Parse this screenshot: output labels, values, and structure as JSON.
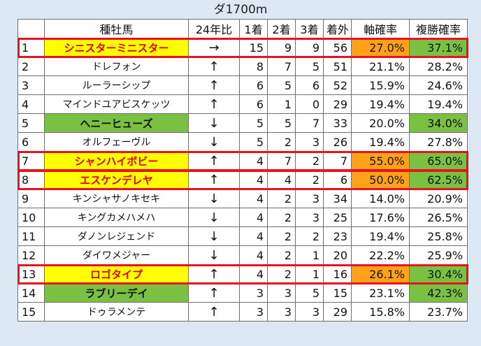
{
  "title": "ダ1700m",
  "headers": [
    "",
    "種牡馬",
    "24年比",
    "1着",
    "2着",
    "3着",
    "着外",
    "軸確率",
    "複勝確率"
  ],
  "colors": {
    "highlight_yellow": "#ffff00",
    "highlight_green": "#7ac143",
    "highlight_orange": "#ffa21a",
    "red_text": "#e00000",
    "red_border": "#e8131f",
    "page_bg": "#dce9f5"
  },
  "rows": [
    {
      "no": "1",
      "name": "シニスターミニスター",
      "cmp": "→",
      "first": "15",
      "second": "9",
      "third": "9",
      "out": "56",
      "axis": "27.0%",
      "place": "37.1%",
      "name_hl": "yellow",
      "axis_hl": "orange",
      "place_hl": "green",
      "boxed": true
    },
    {
      "no": "2",
      "name": "ドレフォン",
      "cmp": "↑",
      "first": "8",
      "second": "7",
      "third": "5",
      "out": "51",
      "axis": "21.1%",
      "place": "28.2%",
      "name_hl": "",
      "axis_hl": "",
      "place_hl": "",
      "boxed": false
    },
    {
      "no": "3",
      "name": "ルーラーシップ",
      "cmp": "↑",
      "first": "6",
      "second": "5",
      "third": "6",
      "out": "52",
      "axis": "15.9%",
      "place": "24.6%",
      "name_hl": "",
      "axis_hl": "",
      "place_hl": "",
      "boxed": false
    },
    {
      "no": "4",
      "name": "マインドユアビスケッツ",
      "cmp": "↑",
      "first": "6",
      "second": "1",
      "third": "0",
      "out": "29",
      "axis": "19.4%",
      "place": "19.4%",
      "name_hl": "",
      "axis_hl": "",
      "place_hl": "",
      "boxed": false
    },
    {
      "no": "5",
      "name": "ヘニーヒューズ",
      "cmp": "↓",
      "first": "5",
      "second": "5",
      "third": "7",
      "out": "33",
      "axis": "20.0%",
      "place": "34.0%",
      "name_hl": "green",
      "axis_hl": "",
      "place_hl": "green",
      "boxed": false
    },
    {
      "no": "6",
      "name": "オルフェーヴル",
      "cmp": "↓",
      "first": "5",
      "second": "2",
      "third": "3",
      "out": "26",
      "axis": "19.4%",
      "place": "27.8%",
      "name_hl": "",
      "axis_hl": "",
      "place_hl": "",
      "boxed": false
    },
    {
      "no": "7",
      "name": "シャンハイボビー",
      "cmp": "↑",
      "first": "4",
      "second": "7",
      "third": "2",
      "out": "7",
      "axis": "55.0%",
      "place": "65.0%",
      "name_hl": "yellow",
      "axis_hl": "orange",
      "place_hl": "green",
      "boxed": true
    },
    {
      "no": "8",
      "name": "エスケンデレヤ",
      "cmp": "↑",
      "first": "4",
      "second": "4",
      "third": "2",
      "out": "6",
      "axis": "50.0%",
      "place": "62.5%",
      "name_hl": "yellow",
      "axis_hl": "orange",
      "place_hl": "green",
      "boxed": true
    },
    {
      "no": "9",
      "name": "キンシャサノキセキ",
      "cmp": "↓",
      "first": "4",
      "second": "2",
      "third": "3",
      "out": "34",
      "axis": "14.0%",
      "place": "20.9%",
      "name_hl": "",
      "axis_hl": "",
      "place_hl": "",
      "boxed": false
    },
    {
      "no": "10",
      "name": "キングカメハメハ",
      "cmp": "↓",
      "first": "4",
      "second": "2",
      "third": "3",
      "out": "25",
      "axis": "17.6%",
      "place": "26.5%",
      "name_hl": "",
      "axis_hl": "",
      "place_hl": "",
      "boxed": false
    },
    {
      "no": "11",
      "name": "ダノンレジェンド",
      "cmp": "↓",
      "first": "4",
      "second": "2",
      "third": "2",
      "out": "23",
      "axis": "19.4%",
      "place": "25.8%",
      "name_hl": "",
      "axis_hl": "",
      "place_hl": "",
      "boxed": false
    },
    {
      "no": "12",
      "name": "ダイワメジャー",
      "cmp": "↓",
      "first": "4",
      "second": "2",
      "third": "1",
      "out": "20",
      "axis": "22.2%",
      "place": "25.9%",
      "name_hl": "",
      "axis_hl": "",
      "place_hl": "",
      "boxed": false
    },
    {
      "no": "13",
      "name": "ロゴタイプ",
      "cmp": "↑",
      "first": "4",
      "second": "2",
      "third": "1",
      "out": "16",
      "axis": "26.1%",
      "place": "30.4%",
      "name_hl": "yellow",
      "axis_hl": "orange",
      "place_hl": "green",
      "boxed": true
    },
    {
      "no": "14",
      "name": "ラブリーデイ",
      "cmp": "↑",
      "first": "3",
      "second": "3",
      "third": "5",
      "out": "15",
      "axis": "23.1%",
      "place": "42.3%",
      "name_hl": "green",
      "axis_hl": "",
      "place_hl": "green",
      "boxed": false
    },
    {
      "no": "15",
      "name": "ドゥラメンテ",
      "cmp": "↑",
      "first": "3",
      "second": "3",
      "third": "3",
      "out": "29",
      "axis": "15.8%",
      "place": "23.7%",
      "name_hl": "",
      "axis_hl": "",
      "place_hl": "",
      "boxed": false
    }
  ]
}
